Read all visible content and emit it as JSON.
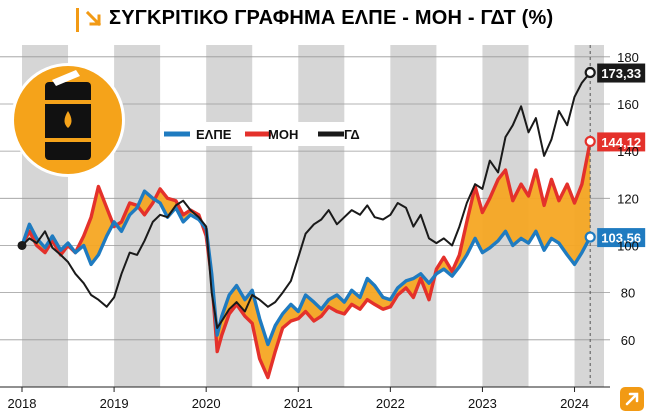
{
  "title": "ΣΥΓΚΡΙΤΙΚΟ ΓΡΑΦΗΜΑ ΕΛΠΕ - ΜΟΗ - ΓΔΤ (%)",
  "colors": {
    "elpe": "#1f7bc0",
    "moh": "#e4312b",
    "gd": "#1a1a1a",
    "fill_between": "#f5a623",
    "band": "#d6d6d6",
    "barrel_bg": "#f5a31a",
    "accent": "#f29a14"
  },
  "icons": {
    "title": "arrow-down-right-icon",
    "barrel": "oil-barrel-icon",
    "corner": "arrow-up-right-icon"
  },
  "chart_data": {
    "type": "line",
    "title": "ΣΥΓΚΡΙΤΙΚΟ ΓΡΑΦΗΜΑ ΕΛΠΕ - ΜΟΗ - ΓΔΤ (%)",
    "xlim": [
      2018.0,
      2024.32
    ],
    "ylim": [
      40,
      185
    ],
    "x_ticks": [
      "2018",
      "2019",
      "2020",
      "2021",
      "2022",
      "2023",
      "2024"
    ],
    "y_ticks": [
      60,
      80,
      100,
      120,
      140,
      160,
      180
    ],
    "grid": "horizontal",
    "shaded_years": [
      [
        2018.0,
        2018.5
      ],
      [
        2019.0,
        2019.5
      ],
      [
        2020.0,
        2020.5
      ],
      [
        2021.0,
        2021.5
      ],
      [
        2022.0,
        2022.5
      ],
      [
        2023.0,
        2023.5
      ],
      [
        2024.0,
        2024.32
      ]
    ],
    "fill_between": [
      "ΕΛΠΕ",
      "ΜΟΗ"
    ],
    "legend": "upper-left",
    "series": [
      {
        "name": "ΕΛΠΕ",
        "x": [
          2018.0,
          2018.08,
          2018.16,
          2018.25,
          2018.33,
          2018.42,
          2018.5,
          2018.58,
          2018.67,
          2018.75,
          2018.83,
          2018.92,
          2019.0,
          2019.08,
          2019.17,
          2019.25,
          2019.33,
          2019.42,
          2019.5,
          2019.58,
          2019.67,
          2019.75,
          2019.83,
          2019.92,
          2020.0,
          2020.06,
          2020.12,
          2020.17,
          2020.25,
          2020.33,
          2020.42,
          2020.5,
          2020.58,
          2020.67,
          2020.75,
          2020.83,
          2020.92,
          2021.0,
          2021.08,
          2021.17,
          2021.25,
          2021.33,
          2021.42,
          2021.5,
          2021.58,
          2021.67,
          2021.75,
          2021.83,
          2021.92,
          2022.0,
          2022.08,
          2022.17,
          2022.25,
          2022.33,
          2022.42,
          2022.5,
          2022.58,
          2022.67,
          2022.75,
          2022.83,
          2022.92,
          2023.0,
          2023.08,
          2023.17,
          2023.25,
          2023.33,
          2023.42,
          2023.5,
          2023.58,
          2023.67,
          2023.75,
          2023.83,
          2023.92,
          2024.0,
          2024.08,
          2024.17
        ],
        "values": [
          100,
          109,
          103,
          99,
          104,
          98,
          101,
          97,
          100,
          92,
          96,
          104,
          110,
          106,
          113,
          116,
          123,
          120,
          118,
          112,
          116,
          110,
          113,
          111,
          107,
          88,
          62,
          70,
          79,
          83,
          77,
          81,
          69,
          58,
          66,
          71,
          75,
          72,
          79,
          76,
          73,
          77,
          79,
          76,
          81,
          78,
          86,
          83,
          78,
          77,
          82,
          85,
          86,
          88,
          84,
          88,
          90,
          87,
          91,
          96,
          103,
          97,
          99,
          102,
          106,
          100,
          103,
          101,
          106,
          98,
          103,
          101,
          96,
          92,
          97,
          103.56
        ]
      },
      {
        "name": "ΜΟΗ",
        "x": [
          2018.0,
          2018.08,
          2018.16,
          2018.25,
          2018.33,
          2018.42,
          2018.5,
          2018.58,
          2018.67,
          2018.75,
          2018.83,
          2018.92,
          2019.0,
          2019.08,
          2019.17,
          2019.25,
          2019.33,
          2019.42,
          2019.5,
          2019.58,
          2019.67,
          2019.75,
          2019.83,
          2019.92,
          2020.0,
          2020.06,
          2020.12,
          2020.17,
          2020.25,
          2020.33,
          2020.42,
          2020.5,
          2020.58,
          2020.67,
          2020.75,
          2020.83,
          2020.92,
          2021.0,
          2021.08,
          2021.17,
          2021.25,
          2021.33,
          2021.42,
          2021.5,
          2021.58,
          2021.67,
          2021.75,
          2021.83,
          2021.92,
          2022.0,
          2022.08,
          2022.17,
          2022.25,
          2022.33,
          2022.42,
          2022.5,
          2022.58,
          2022.67,
          2022.75,
          2022.83,
          2022.92,
          2023.0,
          2023.08,
          2023.17,
          2023.25,
          2023.33,
          2023.42,
          2023.5,
          2023.58,
          2023.67,
          2023.75,
          2023.83,
          2023.92,
          2024.0,
          2024.08,
          2024.17
        ],
        "values": [
          100,
          106,
          100,
          97,
          102,
          96,
          100,
          97,
          104,
          112,
          125,
          116,
          108,
          110,
          118,
          117,
          113,
          118,
          124,
          120,
          119,
          113,
          115,
          113,
          104,
          86,
          55,
          62,
          71,
          75,
          70,
          67,
          52,
          44,
          55,
          65,
          68,
          69,
          72,
          68,
          70,
          74,
          72,
          71,
          75,
          73,
          77,
          75,
          73,
          74,
          79,
          82,
          78,
          86,
          77,
          90,
          95,
          89,
          96,
          110,
          125,
          114,
          120,
          128,
          132,
          119,
          126,
          121,
          132,
          117,
          128,
          119,
          126,
          118,
          126,
          144.12
        ]
      },
      {
        "name": "ΓΔ",
        "x": [
          2018.0,
          2018.08,
          2018.16,
          2018.25,
          2018.33,
          2018.42,
          2018.5,
          2018.58,
          2018.67,
          2018.75,
          2018.83,
          2018.92,
          2019.0,
          2019.08,
          2019.17,
          2019.25,
          2019.33,
          2019.42,
          2019.5,
          2019.58,
          2019.67,
          2019.75,
          2019.83,
          2019.92,
          2020.0,
          2020.06,
          2020.12,
          2020.17,
          2020.25,
          2020.33,
          2020.42,
          2020.5,
          2020.58,
          2020.67,
          2020.75,
          2020.83,
          2020.92,
          2021.0,
          2021.08,
          2021.17,
          2021.25,
          2021.33,
          2021.42,
          2021.5,
          2021.58,
          2021.67,
          2021.75,
          2021.83,
          2021.92,
          2022.0,
          2022.08,
          2022.17,
          2022.25,
          2022.33,
          2022.42,
          2022.5,
          2022.58,
          2022.67,
          2022.75,
          2022.83,
          2022.92,
          2023.0,
          2023.08,
          2023.17,
          2023.25,
          2023.33,
          2023.42,
          2023.5,
          2023.58,
          2023.67,
          2023.75,
          2023.83,
          2023.92,
          2024.0,
          2024.08,
          2024.17
        ],
        "values": [
          100,
          103,
          101,
          106,
          99,
          96,
          93,
          88,
          84,
          79,
          77,
          74,
          78,
          88,
          97,
          96,
          102,
          110,
          113,
          112,
          117,
          119,
          115,
          112,
          108,
          80,
          65,
          68,
          73,
          76,
          72,
          79,
          77,
          74,
          76,
          80,
          85,
          95,
          105,
          109,
          111,
          115,
          109,
          112,
          115,
          113,
          117,
          112,
          111,
          113,
          118,
          116,
          108,
          113,
          103,
          101,
          103,
          100,
          108,
          118,
          126,
          124,
          136,
          131,
          146,
          151,
          159,
          148,
          154,
          138,
          145,
          157,
          151,
          163,
          169,
          173.33
        ]
      }
    ],
    "end_labels": [
      {
        "series": "ΓΔ",
        "text": "173,33"
      },
      {
        "series": "ΜΟΗ",
        "text": "144,12"
      },
      {
        "series": "ΕΛΠΕ",
        "text": "103,56"
      }
    ]
  }
}
